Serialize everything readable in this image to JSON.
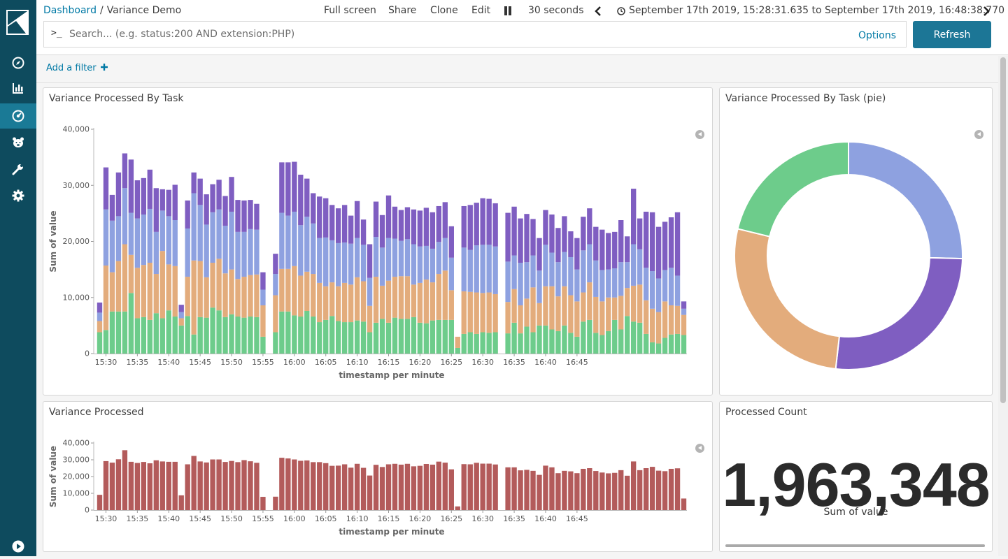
{
  "breadcrumb": {
    "parent": "Dashboard",
    "separator": "/",
    "current": "Variance Demo"
  },
  "top_nav": {
    "full_screen": "Full screen",
    "share": "Share",
    "clone": "Clone",
    "edit": "Edit",
    "refresh_interval": "30 seconds",
    "time_range": "September 17th 2019, 15:28:31.635 to September 17th 2019, 16:48:38.770"
  },
  "query_bar": {
    "prompt": ">_",
    "placeholder": "Search... (e.g. status:200 AND extension:PHP)",
    "value": "",
    "options_label": "Options",
    "refresh_label": "Refresh"
  },
  "filter_bar": {
    "add_filter_label": "Add a filter"
  },
  "sidebar": {
    "items": [
      {
        "icon": "discover-compass-icon",
        "active": false
      },
      {
        "icon": "visualize-bar-chart-icon",
        "active": false
      },
      {
        "icon": "dashboard-gauge-icon",
        "active": true
      },
      {
        "icon": "timelion-bear-icon",
        "active": false
      },
      {
        "icon": "dev-tools-wrench-icon",
        "active": false
      },
      {
        "icon": "management-gear-icon",
        "active": false
      }
    ],
    "bottom_icon": "collapse-play-icon"
  },
  "colors": {
    "green": "#6dcc8b",
    "orange": "#e3ac7c",
    "blue": "#8ea1e0",
    "purple": "#7f5ec1",
    "red": "#b35b5b",
    "accent": "#0079a5",
    "sidebar": "#0e4b5e"
  },
  "panels": {
    "stacked": {
      "title": "Variance Processed By Task"
    },
    "pie": {
      "title": "Variance Processed By Task (pie)"
    },
    "total": {
      "title": "Variance Processed"
    },
    "metric": {
      "title": "Processed Count",
      "value": "1,963,348",
      "label": "Sum of value"
    }
  },
  "chart_data": [
    {
      "type": "bar",
      "stacked": true,
      "title": "Variance Processed By Task",
      "xlabel": "timestamp per minute",
      "ylabel": "Sum of value",
      "ylim": [
        0,
        40000
      ],
      "y_ticks": [
        "0",
        "10,000",
        "20,000",
        "30,000",
        "40,000"
      ],
      "x_ticks": [
        "15:30",
        "15:35",
        "15:40",
        "15:45",
        "15:50",
        "15:55",
        "16:00",
        "16:05",
        "16:10",
        "16:15",
        "16:20",
        "16:25",
        "16:30",
        "16:35",
        "16:40",
        "16:45"
      ],
      "x_start": "15:29",
      "x_end": "16:48",
      "legend": "none",
      "grid": false,
      "series": [
        {
          "color": "#6dcc8b",
          "values": [
            3800,
            4200,
            7500,
            7500,
            7500,
            10800,
            6300,
            6500,
            6000,
            7200,
            6300,
            7700,
            6600,
            5000,
            6700,
            3400,
            6500,
            6400,
            8200,
            7700,
            6500,
            7000,
            6600,
            6400,
            6600,
            6500,
            3000,
            0,
            3800,
            7500,
            7500,
            6800,
            6600,
            7600,
            6600,
            5600,
            6000,
            6700,
            5800,
            5600,
            5600,
            5900,
            5700,
            3800,
            5500,
            6200,
            5500,
            6400,
            6200,
            6200,
            6500,
            5500,
            5400,
            5900,
            6000,
            6000,
            6000,
            1000,
            3500,
            3800,
            3500,
            3800,
            3700,
            3800,
            0,
            3600,
            5500,
            3600,
            4800,
            3800,
            5000,
            5000,
            4300,
            4000,
            5000,
            3700,
            3000,
            5700,
            6000,
            3700,
            3300,
            4000,
            6000,
            4300,
            6700,
            5700,
            5500,
            3500,
            2000,
            1800,
            2800,
            3400,
            3500,
            3300
          ]
        },
        {
          "color": "#e3ac7c",
          "values": [
            2000,
            11500,
            7000,
            9000,
            12000,
            6800,
            9000,
            9300,
            10200,
            7000,
            12000,
            8200,
            9000,
            1300,
            7000,
            13200,
            10000,
            7200,
            8000,
            9200,
            7800,
            8000,
            6700,
            7300,
            7400,
            7600,
            5600,
            0,
            6600,
            7600,
            7600,
            8800,
            7300,
            7000,
            7600,
            7000,
            6000,
            6000,
            6200,
            7000,
            6700,
            7700,
            7200,
            4700,
            8200,
            5900,
            7500,
            7300,
            7600,
            7600,
            5800,
            7100,
            7800,
            6800,
            8200,
            8800,
            5300,
            2000,
            7600,
            7200,
            7400,
            7000,
            7200,
            6800,
            0,
            5600,
            6000,
            5000,
            5000,
            8000,
            4000,
            7000,
            7700,
            6200,
            7000,
            6700,
            6300,
            5200,
            6700,
            6400,
            6000,
            6000,
            4000,
            6000,
            5000,
            6400,
            6800,
            6000,
            6000,
            5600,
            6500,
            5200,
            5000,
            3600
          ]
        },
        {
          "color": "#8ea1e0",
          "values": [
            1500,
            10000,
            9200,
            8000,
            10000,
            7500,
            8800,
            9000,
            9600,
            7500,
            7200,
            8600,
            8200,
            1100,
            8600,
            12000,
            10000,
            9400,
            9000,
            8800,
            8500,
            10300,
            8400,
            8000,
            8200,
            8000,
            2800,
            0,
            3800,
            10000,
            9500,
            9700,
            9000,
            9800,
            9000,
            8000,
            8700,
            7500,
            7700,
            7200,
            7300,
            7000,
            6500,
            5000,
            7100,
            6800,
            7600,
            6800,
            6300,
            6600,
            7200,
            6500,
            6000,
            6000,
            5700,
            5800,
            5800,
            0,
            7800,
            7500,
            8400,
            8600,
            8500,
            8500,
            0,
            7200,
            6000,
            7600,
            6500,
            5700,
            5800,
            7400,
            6000,
            6100,
            6100,
            6800,
            5700,
            7500,
            6800,
            6500,
            5600,
            5000,
            5200,
            6000,
            4600,
            7400,
            6300,
            5800,
            6700,
            6000,
            5600,
            6700,
            5400,
            1100
          ]
        },
        {
          "color": "#7f5ec1",
          "values": [
            1800,
            7500,
            4600,
            7800,
            6200,
            9500,
            6800,
            6500,
            7000,
            7800,
            3800,
            4700,
            6300,
            1300,
            5000,
            3700,
            4700,
            5400,
            5000,
            5300,
            5300,
            6200,
            5700,
            5600,
            5200,
            4600,
            3100,
            0,
            3600,
            9000,
            9500,
            8900,
            9000,
            6800,
            5400,
            7400,
            7000,
            6300,
            6200,
            6700,
            5000,
            6600,
            4500,
            6000,
            6300,
            5800,
            7600,
            5700,
            5500,
            5700,
            6200,
            6400,
            6800,
            6500,
            6400,
            6400,
            5600,
            0,
            7400,
            8000,
            7600,
            8300,
            8200,
            7700,
            0,
            8700,
            8700,
            7900,
            8600,
            6500,
            5800,
            6200,
            6800,
            6100,
            6400,
            4600,
            5600,
            6000,
            6400,
            6000,
            7200,
            6500,
            6500,
            7500,
            4600,
            9900,
            5500,
            10000,
            10500,
            9200,
            8600,
            9000,
            11300,
            1300
          ]
        }
      ]
    },
    {
      "type": "pie",
      "donut": true,
      "title": "Variance Processed By Task (pie)",
      "slices": [
        {
          "color": "#8ea1e0",
          "value": 25.4
        },
        {
          "color": "#7f5ec1",
          "value": 26.4
        },
        {
          "color": "#e3ac7c",
          "value": 27.0
        },
        {
          "color": "#6dcc8b",
          "value": 21.2
        }
      ]
    },
    {
      "type": "bar",
      "title": "Variance Processed",
      "xlabel": "timestamp per minute",
      "ylabel": "Sum of value",
      "ylim": [
        0,
        40000
      ],
      "y_ticks": [
        "0",
        "10,000",
        "20,000",
        "30,000",
        "40,000"
      ],
      "x_ticks": [
        "15:30",
        "15:35",
        "15:40",
        "15:45",
        "15:50",
        "15:55",
        "16:00",
        "16:05",
        "16:10",
        "16:15",
        "16:20",
        "16:25",
        "16:30",
        "16:35",
        "16:40",
        "16:45"
      ],
      "legend": "none",
      "grid": false,
      "series": [
        {
          "color": "#b35b5b",
          "values": [
            9100,
            29200,
            28300,
            30300,
            35700,
            28800,
            28100,
            28700,
            27900,
            29700,
            29000,
            28800,
            28800,
            8800,
            27300,
            32300,
            29000,
            28400,
            30200,
            30200,
            28700,
            29300,
            28600,
            29800,
            29100,
            28200,
            7900,
            0,
            8000,
            31200,
            30800,
            30200,
            29400,
            29600,
            28600,
            28600,
            28000,
            26400,
            26500,
            27300,
            25300,
            27600,
            25200,
            20600,
            27000,
            25700,
            27300,
            27600,
            27100,
            27600,
            26100,
            26400,
            27500,
            27100,
            28900,
            28300,
            24300,
            2200,
            27400,
            27300,
            28200,
            27700,
            27700,
            27200,
            0,
            25500,
            25500,
            23700,
            24000,
            23400,
            21000,
            26500,
            25500,
            22000,
            23400,
            23100,
            22000,
            24600,
            25000,
            23300,
            22400,
            21900,
            22200,
            23800,
            20500,
            29000,
            23800,
            25000,
            25800,
            23500,
            23200,
            24600,
            24900,
            6900
          ]
        }
      ]
    },
    {
      "type": "table",
      "title": "Processed Count",
      "metric": "1,963,348",
      "label": "Sum of value"
    }
  ]
}
